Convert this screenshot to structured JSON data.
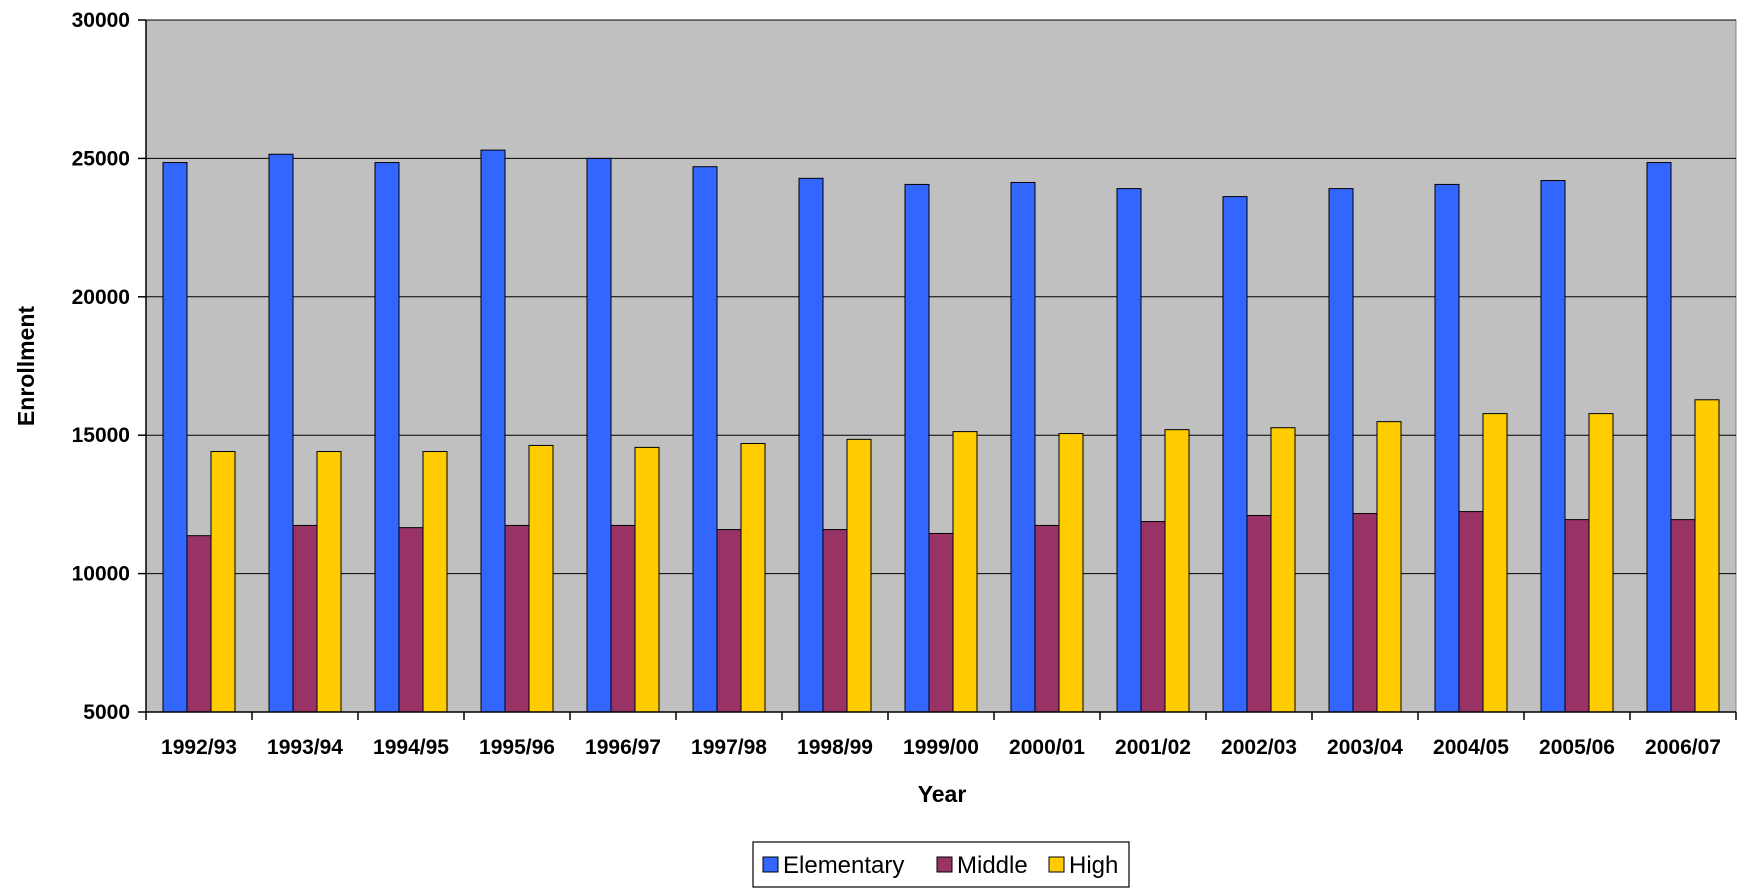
{
  "chart_data": {
    "type": "bar",
    "title": "",
    "xlabel": "Year",
    "ylabel": "Enrollment",
    "ylim": [
      5000,
      30000
    ],
    "yticks": [
      5000,
      10000,
      15000,
      20000,
      25000,
      30000
    ],
    "grid": true,
    "legend_position": "bottom",
    "plot_background": "#C0C0C0",
    "categories": [
      "1992/93",
      "1993/94",
      "1994/95",
      "1995/96",
      "1996/97",
      "1997/98",
      "1998/99",
      "1999/00",
      "2000/01",
      "2001/02",
      "2002/03",
      "2003/04",
      "2004/05",
      "2005/06",
      "2006/07"
    ],
    "series": [
      {
        "name": "Elementary",
        "color": "#3366FF",
        "values": [
          24850,
          25150,
          24850,
          25300,
          25000,
          24700,
          24280,
          24060,
          24130,
          23910,
          23620,
          23910,
          24060,
          24200,
          24850
        ]
      },
      {
        "name": "Middle",
        "color": "#993366",
        "values": [
          11370,
          11740,
          11660,
          11740,
          11740,
          11590,
          11590,
          11450,
          11740,
          11880,
          12100,
          12170,
          12240,
          11950,
          11950
        ]
      },
      {
        "name": "High",
        "color": "#FFCC00",
        "values": [
          14410,
          14410,
          14410,
          14630,
          14560,
          14700,
          14850,
          15130,
          15060,
          15200,
          15270,
          15490,
          15780,
          15780,
          16280
        ]
      }
    ]
  }
}
